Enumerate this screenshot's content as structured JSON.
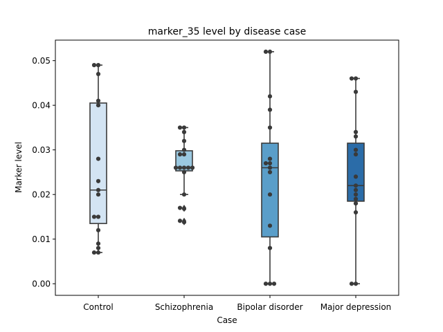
{
  "chart_data": {
    "type": "box",
    "title": "marker_35 level by disease case",
    "xlabel": "Case",
    "ylabel": "Marker level",
    "ylim": [
      -0.0026,
      0.0546
    ],
    "yticks": [
      0.0,
      0.01,
      0.02,
      0.03,
      0.04,
      0.05
    ],
    "ytick_labels": [
      "0.00",
      "0.01",
      "0.02",
      "0.03",
      "0.04",
      "0.05"
    ],
    "grid": false,
    "legend": "none",
    "categories": [
      "Control",
      "Schizophrenia",
      "Bipolar disorder",
      "Major depression"
    ],
    "boxes": [
      {
        "category": "Control",
        "color": "#d3e4f3",
        "q1": 0.0135,
        "median": 0.021,
        "q3": 0.0405,
        "whisker_low": 0.007,
        "whisker_high": 0.049,
        "outliers": [],
        "points": [
          0.049,
          0.049,
          0.047,
          0.041,
          0.04,
          0.028,
          0.023,
          0.021,
          0.02,
          0.015,
          0.015,
          0.012,
          0.009,
          0.008,
          0.007,
          0.007
        ]
      },
      {
        "category": "Schizophrenia",
        "color": "#9ac8e0",
        "q1": 0.0253,
        "median": 0.026,
        "q3": 0.0298,
        "whisker_low": 0.02,
        "whisker_high": 0.035,
        "outliers": [
          0.017,
          0.0168,
          0.0141,
          0.0138
        ],
        "points": [
          0.035,
          0.035,
          0.034,
          0.032,
          0.03,
          0.029,
          0.029,
          0.026,
          0.026,
          0.026,
          0.026,
          0.026,
          0.025,
          0.02,
          0.017,
          0.0168,
          0.0141,
          0.0138
        ]
      },
      {
        "category": "Bipolar disorder",
        "color": "#5a9ec9",
        "q1": 0.0105,
        "median": 0.026,
        "q3": 0.0315,
        "whisker_low": 0.0,
        "whisker_high": 0.052,
        "outliers": [],
        "points": [
          0.052,
          0.052,
          0.042,
          0.039,
          0.035,
          0.028,
          0.027,
          0.027,
          0.026,
          0.025,
          0.02,
          0.013,
          0.008,
          0.0,
          0.0,
          0.0
        ]
      },
      {
        "category": "Major depression",
        "color": "#2b6ca8",
        "q1": 0.0185,
        "median": 0.022,
        "q3": 0.0315,
        "whisker_low": 0.0,
        "whisker_high": 0.046,
        "outliers": [],
        "points": [
          0.046,
          0.046,
          0.043,
          0.034,
          0.033,
          0.03,
          0.029,
          0.024,
          0.022,
          0.021,
          0.02,
          0.019,
          0.018,
          0.016,
          0.0,
          0.0
        ]
      }
    ]
  }
}
